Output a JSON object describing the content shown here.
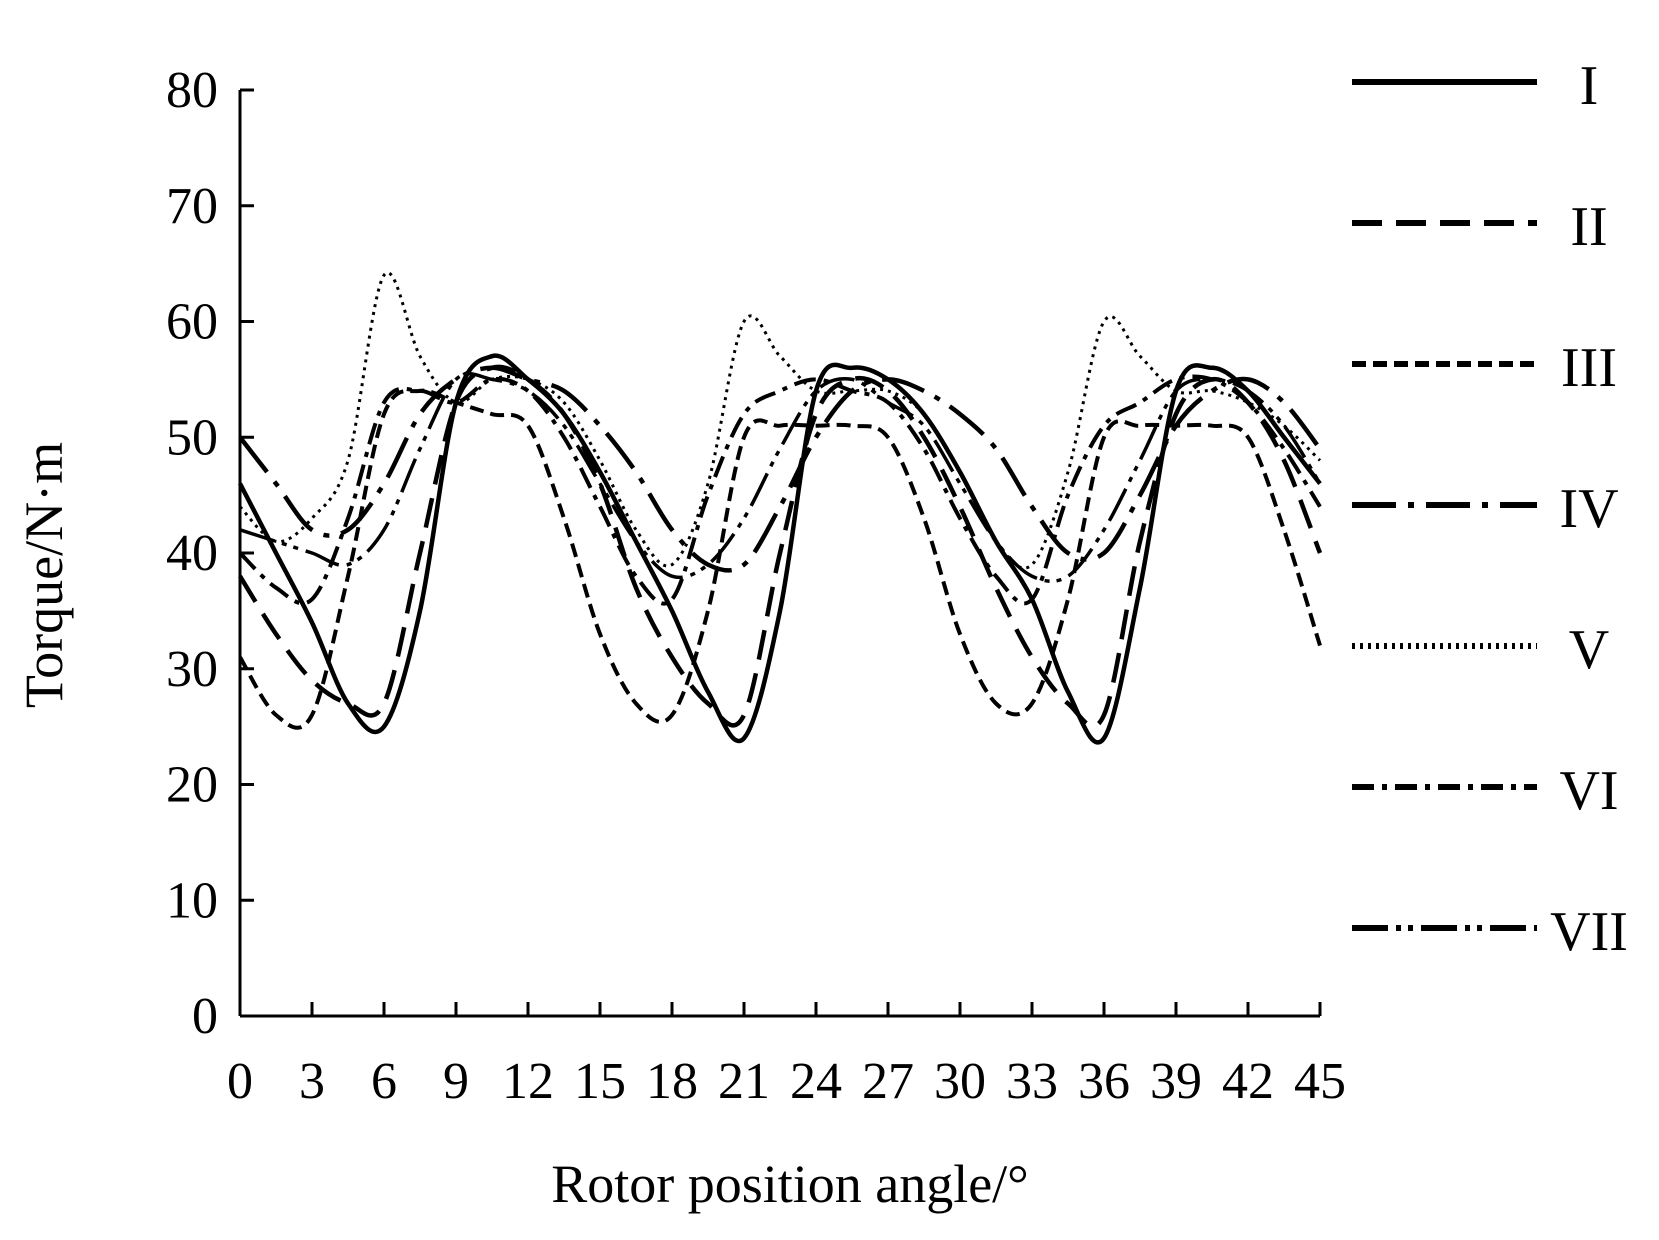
{
  "chart_data": {
    "type": "line",
    "title": "",
    "xlabel": "Rotor position angle/°",
    "ylabel": "Torque/N·m",
    "xlim": [
      0,
      45
    ],
    "ylim": [
      0,
      80
    ],
    "x_ticks": [
      0,
      3,
      6,
      9,
      12,
      15,
      18,
      21,
      24,
      27,
      30,
      33,
      36,
      39,
      42,
      45
    ],
    "y_ticks": [
      0,
      10,
      20,
      30,
      40,
      50,
      60,
      70,
      80
    ],
    "grid": false,
    "legend_position": "right",
    "x": [
      0,
      1.5,
      3,
      4.5,
      6,
      7.5,
      9,
      10.5,
      12,
      13.5,
      15,
      16.5,
      18,
      19.5,
      21,
      22.5,
      24,
      25.5,
      27,
      28.5,
      30,
      31.5,
      33,
      34.5,
      36,
      37.5,
      39,
      40.5,
      42,
      43.5,
      45
    ],
    "series": [
      {
        "name": "I",
        "dash": "",
        "values": [
          46,
          40,
          34,
          27,
          25,
          35,
          53,
          57,
          55,
          52,
          47,
          41,
          35,
          28,
          24,
          35,
          54,
          56,
          55,
          52,
          47,
          41,
          36,
          28,
          24,
          37,
          54,
          56,
          54,
          50,
          46
        ]
      },
      {
        "name": "II",
        "dash": "30,14",
        "values": [
          38,
          33,
          29,
          27,
          27,
          40,
          53,
          56,
          55,
          52,
          46,
          37,
          31,
          27,
          26,
          40,
          52,
          55,
          54,
          50,
          44,
          37,
          31,
          27,
          26,
          41,
          52,
          55,
          53,
          48,
          40
        ]
      },
      {
        "name": "III",
        "dash": "14,7",
        "values": [
          31,
          26,
          26,
          38,
          52,
          54,
          53,
          52,
          51,
          43,
          33,
          27,
          26,
          35,
          50,
          51,
          51,
          51,
          50,
          43,
          33,
          27,
          27,
          36,
          50,
          51,
          51,
          51,
          50,
          42,
          32
        ]
      },
      {
        "name": "IV",
        "dash": "44,12,6,12",
        "values": [
          50,
          46,
          42,
          42,
          46,
          52,
          55,
          56,
          55,
          54,
          51,
          47,
          42,
          39,
          39,
          44,
          50,
          54,
          55,
          54,
          52,
          49,
          44,
          40,
          40,
          45,
          51,
          54,
          55,
          53,
          49
        ]
      },
      {
        "name": "V",
        "dash": "3,5",
        "values": [
          44,
          41,
          43,
          48,
          64,
          57,
          53,
          55,
          55,
          53,
          48,
          42,
          39,
          46,
          60,
          57,
          54,
          54,
          54,
          52,
          47,
          41,
          39,
          47,
          60,
          57,
          54,
          54,
          53,
          51,
          48
        ]
      },
      {
        "name": "VI",
        "dash": "22,8,5,8",
        "values": [
          40,
          37,
          36,
          43,
          53,
          54,
          53,
          55,
          54,
          50,
          44,
          38,
          36,
          45,
          52,
          54,
          55,
          54,
          53,
          49,
          43,
          38,
          36,
          45,
          51,
          53,
          55,
          55,
          53,
          49,
          44
        ]
      },
      {
        "name": "VII",
        "dash": "36,8,5,7,5,8",
        "values": [
          42,
          41,
          40,
          39,
          42,
          49,
          55,
          55,
          54,
          51,
          46,
          41,
          38,
          39,
          43,
          49,
          54,
          55,
          53,
          51,
          46,
          41,
          38,
          38,
          42,
          48,
          54,
          55,
          54,
          51,
          46
        ]
      }
    ]
  }
}
